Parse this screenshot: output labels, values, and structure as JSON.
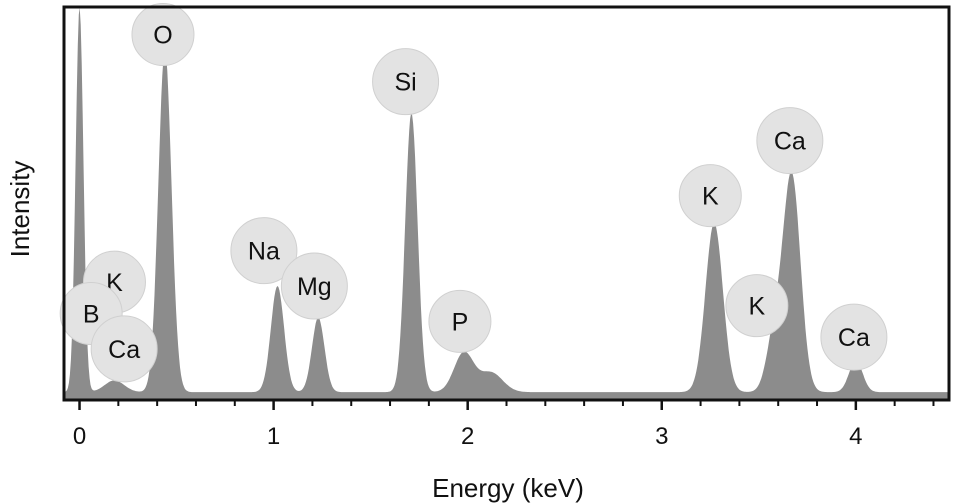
{
  "chart_data": {
    "type": "area",
    "title": "",
    "xlabel": "Energy (keV)",
    "ylabel": "Intensity",
    "xlim": [
      -0.08,
      4.48
    ],
    "ylim": [
      0,
      100
    ],
    "x_ticks": [
      0,
      1,
      2,
      3,
      4
    ],
    "x_tick_labels": [
      "0",
      "1",
      "2",
      "3",
      "4"
    ],
    "grid": false,
    "fill_color": "#8c8c8c",
    "circle_color": "#e3e3e3",
    "spectrum": {
      "baseline": 2,
      "peaks": [
        {
          "center": 0.0,
          "height": 98,
          "width": 0.02
        },
        {
          "center": 0.18,
          "height": 3,
          "width": 0.05
        },
        {
          "center": 0.44,
          "height": 87,
          "width": 0.034
        },
        {
          "center": 1.02,
          "height": 27,
          "width": 0.034
        },
        {
          "center": 1.23,
          "height": 19,
          "width": 0.032
        },
        {
          "center": 1.71,
          "height": 71,
          "width": 0.032
        },
        {
          "center": 1.98,
          "height": 10,
          "width": 0.05
        },
        {
          "center": 2.12,
          "height": 5,
          "width": 0.06
        },
        {
          "center": 3.27,
          "height": 43,
          "width": 0.045
        },
        {
          "center": 3.58,
          "height": 14,
          "width": 0.04
        },
        {
          "center": 3.67,
          "height": 55,
          "width": 0.045
        },
        {
          "center": 4.0,
          "height": 8,
          "width": 0.035
        }
      ]
    },
    "peak_labels": [
      {
        "text": "O",
        "x": 0.43,
        "y": 93
      },
      {
        "text": "Si",
        "x": 1.68,
        "y": 81
      },
      {
        "text": "Ca",
        "x": 3.66,
        "y": 66
      },
      {
        "text": "K",
        "x": 3.25,
        "y": 52
      },
      {
        "text": "Na",
        "x": 0.95,
        "y": 38
      },
      {
        "text": "Mg",
        "x": 1.21,
        "y": 29
      },
      {
        "text": "K",
        "x": 0.18,
        "y": 30
      },
      {
        "text": "B",
        "x": 0.06,
        "y": 22
      },
      {
        "text": "Ca",
        "x": 0.23,
        "y": 13
      },
      {
        "text": "P",
        "x": 1.96,
        "y": 20
      },
      {
        "text": "K",
        "x": 3.49,
        "y": 24
      },
      {
        "text": "Ca",
        "x": 3.99,
        "y": 16
      }
    ]
  }
}
